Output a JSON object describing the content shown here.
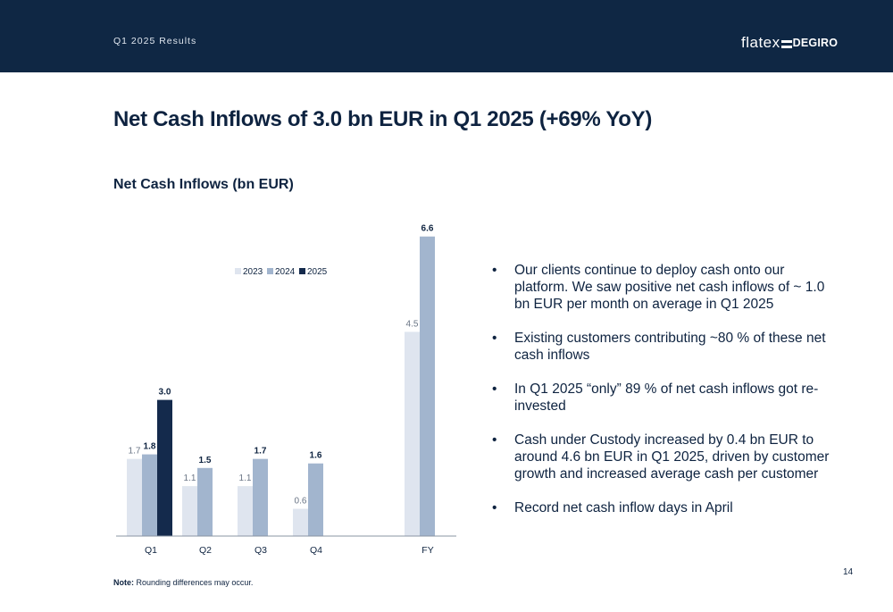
{
  "header": {
    "label": "Q1 2025 Results",
    "logo_text_a": "flatex",
    "logo_text_b": "DEGIRO"
  },
  "title": "Net Cash Inflows of 3.0 bn EUR in Q1 2025 (+69% YoY)",
  "chart_title": "Net Cash Inflows (bn EUR)",
  "bullets": [
    "Our clients continue to deploy cash onto our platform. We saw positive net cash inflows of ~ 1.0 bn EUR per month on average in Q1 2025",
    "Existing customers contributing ~80 % of these net cash inflows",
    "In Q1 2025 “only” 89 % of net cash inflows got re-invested",
    "Cash under Custody increased by 0.4 bn EUR to around 4.6 bn EUR in Q1 2025, driven by customer growth and increased average cash per customer",
    "Record net cash inflow days in April"
  ],
  "note_label": "Note:",
  "note_text": "Rounding differences may occur.",
  "page_number": "14",
  "colors": {
    "header_bg": "#0f2744",
    "series_2023": "#dfe5ef",
    "series_2024": "#a2b5ce",
    "series_2025": "#142a4c"
  },
  "chart_data": {
    "type": "bar",
    "categories": [
      "Q1",
      "Q2",
      "Q3",
      "Q4",
      "FY"
    ],
    "series": [
      {
        "name": "2023",
        "values": [
          1.7,
          1.1,
          1.1,
          0.6,
          4.5
        ],
        "bold_labels": false
      },
      {
        "name": "2024",
        "values": [
          1.8,
          1.5,
          1.7,
          1.6,
          6.6
        ],
        "bold_labels": true
      },
      {
        "name": "2025",
        "values": [
          3.0,
          null,
          null,
          null,
          null
        ],
        "bold_labels": true
      }
    ],
    "data_labels": true,
    "legend": "top-center",
    "grid": false,
    "ylim": [
      0,
      6.6
    ],
    "title": "Net Cash Inflows (bn EUR)"
  }
}
